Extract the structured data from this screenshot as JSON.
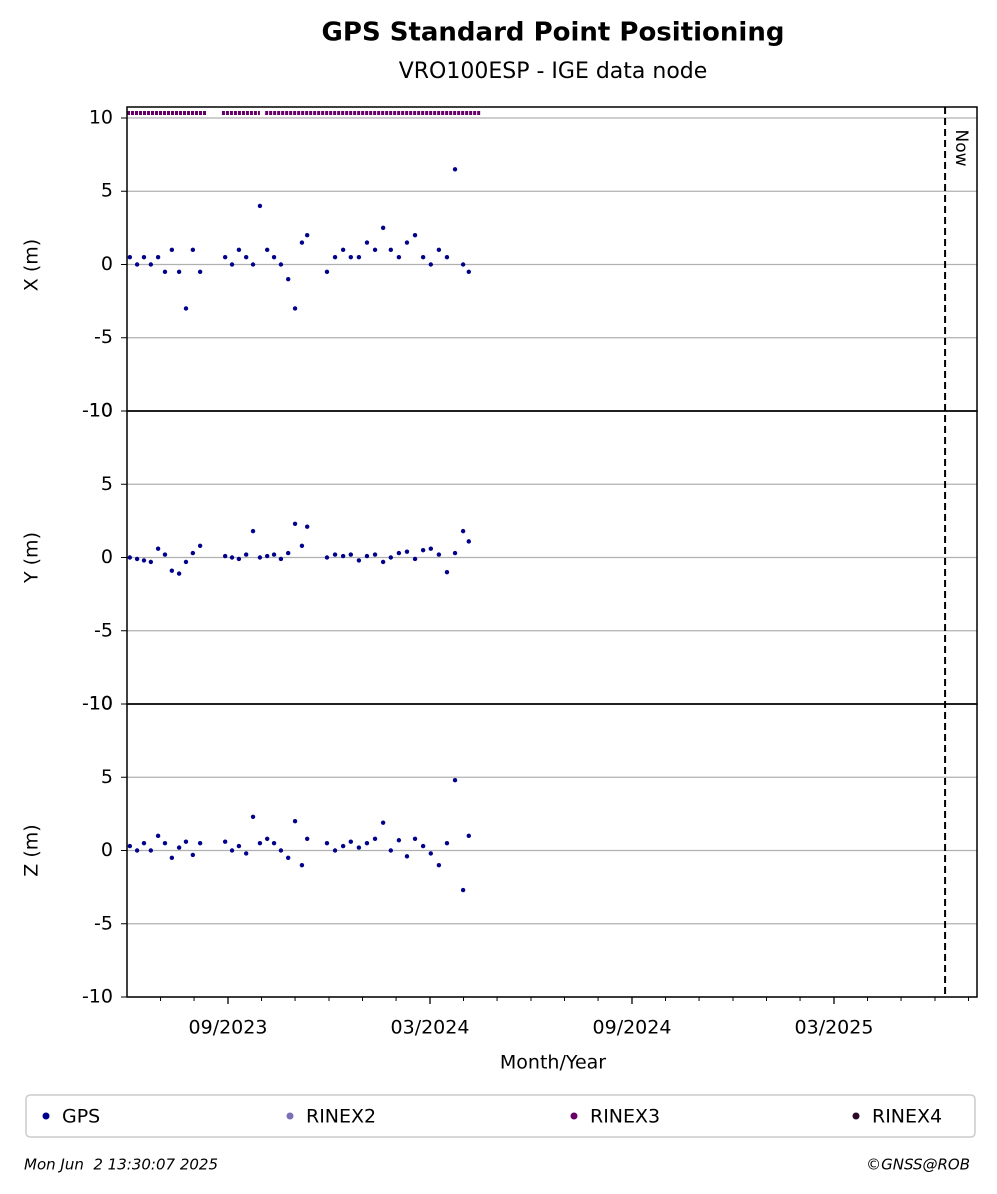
{
  "chart_data": [
    {
      "type": "scatter",
      "title": "GPS Standard Point Positioning",
      "subtitle": "VRO100ESP - IGE data node",
      "ylabel": "X (m)",
      "x": [
        2023.424,
        2023.442,
        2023.459,
        2023.476,
        2023.494,
        2023.511,
        2023.528,
        2023.546,
        2023.563,
        2023.58,
        2023.598,
        2023.66,
        2023.677,
        2023.694,
        2023.712,
        2023.729,
        2023.746,
        2023.764,
        2023.781,
        2023.798,
        2023.816,
        2023.833,
        2023.85,
        2023.863,
        2023.912,
        2023.932,
        2023.952,
        2023.971,
        2023.991,
        2024.011,
        2024.031,
        2024.051,
        2024.07,
        2024.09,
        2024.11,
        2024.13,
        2024.15,
        2024.169,
        2024.189,
        2024.209,
        2024.229,
        2024.249,
        2024.263
      ],
      "series": [
        {
          "name": "GPS",
          "color": "#00008b",
          "values": [
            0.5,
            0,
            0.5,
            0,
            0.5,
            -0.5,
            1,
            -0.5,
            -3,
            1,
            -0.5,
            0.5,
            0,
            1,
            0.5,
            0,
            4,
            1,
            0.5,
            0,
            -1,
            -3,
            1.5,
            2,
            -0.5,
            0.5,
            1,
            0.5,
            0.5,
            1.5,
            1,
            2.5,
            1,
            0.5,
            1.5,
            2,
            0.5,
            0,
            1,
            0.5,
            6.5,
            0,
            -0.5
          ]
        },
        {
          "name": "RINEX2",
          "color": "#7b6fb5"
        },
        {
          "name": "RINEX3",
          "color": "#660066",
          "spans": [
            [
              2023.417,
              2023.615
            ],
            [
              2023.652,
              2023.746
            ],
            [
              2023.759,
              2024.293
            ]
          ]
        },
        {
          "name": "RINEX4",
          "color": "#2b0a2b"
        }
      ],
      "ylim": [
        -10,
        10.75
      ],
      "yticks": [
        -10,
        -5,
        0,
        5,
        10
      ],
      "grid": true
    },
    {
      "type": "scatter",
      "ylabel": "Y (m)",
      "x": [
        2023.424,
        2023.442,
        2023.459,
        2023.476,
        2023.494,
        2023.511,
        2023.528,
        2023.546,
        2023.563,
        2023.58,
        2023.598,
        2023.66,
        2023.677,
        2023.694,
        2023.712,
        2023.729,
        2023.746,
        2023.764,
        2023.781,
        2023.798,
        2023.816,
        2023.833,
        2023.85,
        2023.863,
        2023.912,
        2023.932,
        2023.952,
        2023.971,
        2023.991,
        2024.011,
        2024.031,
        2024.051,
        2024.07,
        2024.09,
        2024.11,
        2024.13,
        2024.15,
        2024.169,
        2024.189,
        2024.209,
        2024.229,
        2024.249,
        2024.263
      ],
      "series": [
        {
          "name": "GPS",
          "color": "#00008b",
          "values": [
            0,
            -0.1,
            -0.2,
            -0.3,
            0.6,
            0.2,
            -0.9,
            -1.1,
            -0.3,
            0.3,
            0.8,
            0.1,
            0,
            -0.1,
            0.2,
            1.8,
            0,
            0.1,
            0.2,
            -0.1,
            0.3,
            2.3,
            0.8,
            2.1,
            0,
            0.2,
            0.1,
            0.2,
            -0.2,
            0.1,
            0.2,
            -0.3,
            0,
            0.3,
            0.4,
            -0.1,
            0.5,
            0.6,
            0.2,
            -1,
            0.3,
            1.8,
            1.1
          ]
        }
      ],
      "ylim": [
        -10,
        10
      ],
      "yticks": [
        -10,
        -5,
        0,
        5,
        10
      ],
      "grid": true
    },
    {
      "type": "scatter",
      "ylabel": "Z (m)",
      "xlabel": "Month/Year",
      "x": [
        2023.424,
        2023.442,
        2023.459,
        2023.476,
        2023.494,
        2023.511,
        2023.528,
        2023.546,
        2023.563,
        2023.58,
        2023.598,
        2023.66,
        2023.677,
        2023.694,
        2023.712,
        2023.729,
        2023.746,
        2023.764,
        2023.781,
        2023.798,
        2023.816,
        2023.833,
        2023.85,
        2023.863,
        2023.912,
        2023.932,
        2023.952,
        2023.971,
        2023.991,
        2024.011,
        2024.031,
        2024.051,
        2024.07,
        2024.09,
        2024.11,
        2024.13,
        2024.15,
        2024.169,
        2024.189,
        2024.209,
        2024.229,
        2024.249,
        2024.263
      ],
      "series": [
        {
          "name": "GPS",
          "color": "#00008b",
          "values": [
            0.3,
            0,
            0.5,
            0,
            1,
            0.5,
            -0.5,
            0.2,
            0.6,
            -0.3,
            0.5,
            0.6,
            0,
            0.3,
            -0.2,
            2.3,
            0.5,
            0.8,
            0.5,
            0,
            -0.5,
            2,
            -1,
            0.8,
            0.5,
            0,
            0.3,
            0.6,
            0.2,
            0.5,
            0.8,
            1.9,
            0,
            0.7,
            -0.4,
            0.8,
            0.3,
            -0.2,
            -1,
            0.5,
            4.8,
            -2.7,
            1
          ]
        }
      ],
      "ylim": [
        -10,
        10
      ],
      "yticks": [
        -10,
        -5,
        0,
        5,
        10
      ],
      "grid": true,
      "xlim": [
        2023.417,
        2025.521
      ],
      "xticks": [
        {
          "value": 2023.667,
          "label": "09/2023"
        },
        {
          "value": 2024.167,
          "label": "03/2024"
        },
        {
          "value": 2024.667,
          "label": "09/2024"
        },
        {
          "value": 2025.167,
          "label": "03/2025"
        }
      ],
      "xminorticks": [
        2023.5,
        2023.583,
        2023.75,
        2023.833,
        2023.917,
        2024.0,
        2024.083,
        2024.25,
        2024.333,
        2024.417,
        2024.5,
        2024.583,
        2024.75,
        2024.833,
        2024.917,
        2025.0,
        2025.083,
        2025.25,
        2025.333,
        2025.417,
        2025.5
      ],
      "annotation": {
        "label": "Now",
        "x": 2025.442
      }
    }
  ],
  "footer": {
    "timestamp": "Mon Jun  2 13:30:07 2025",
    "credit": "©GNSS@ROB"
  }
}
